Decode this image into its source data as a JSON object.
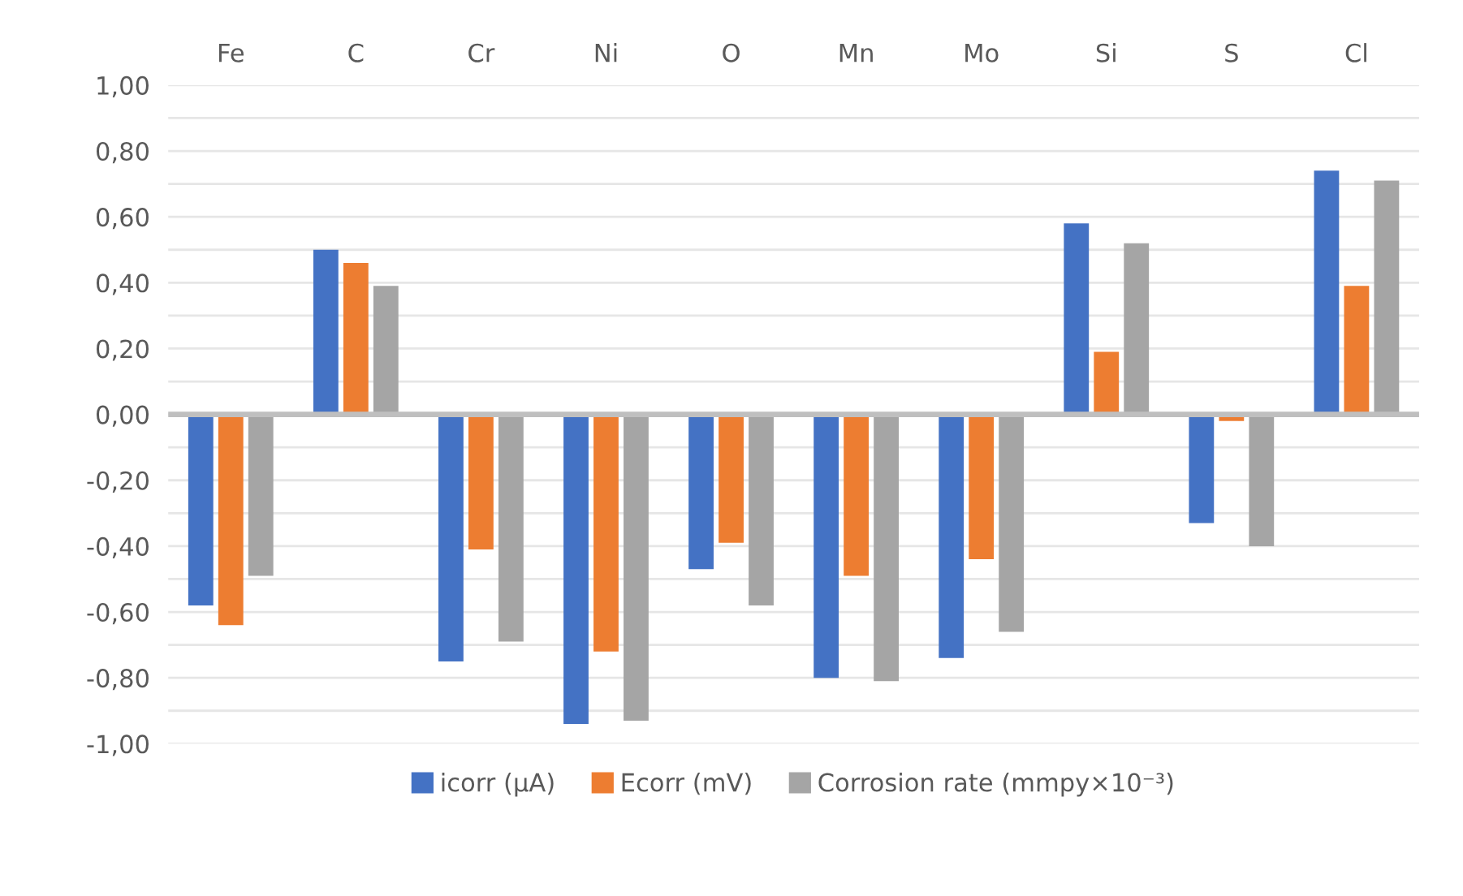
{
  "chart_data": {
    "type": "bar",
    "categories": [
      "Fe",
      "C",
      "Cr",
      "Ni",
      "O",
      "Mn",
      "Mo",
      "Si",
      "S",
      "Cl"
    ],
    "series": [
      {
        "name": "icorr (µA)",
        "color": "#4472c4",
        "values": [
          -0.58,
          0.5,
          -0.75,
          -0.94,
          -0.47,
          -0.8,
          -0.74,
          0.58,
          -0.33,
          0.74
        ]
      },
      {
        "name": "Ecorr (mV)",
        "color": "#ed7d31",
        "values": [
          -0.64,
          0.46,
          -0.41,
          -0.72,
          -0.39,
          -0.49,
          -0.44,
          0.19,
          -0.02,
          0.39
        ]
      },
      {
        "name": "Corrosion rate (mmpy×10⁻³)",
        "color": "#a5a5a5",
        "values": [
          -0.49,
          0.39,
          -0.69,
          -0.93,
          -0.58,
          -0.81,
          -0.66,
          0.52,
          -0.4,
          0.71
        ]
      }
    ],
    "ylim": [
      -1,
      1
    ],
    "yticks": [
      {
        "value": -1,
        "label": "-1,00"
      },
      {
        "value": -0.9,
        "label": null
      },
      {
        "value": -0.8,
        "label": "-0,80"
      },
      {
        "value": -0.7,
        "label": null
      },
      {
        "value": -0.6,
        "label": "-0,60"
      },
      {
        "value": -0.5,
        "label": null
      },
      {
        "value": -0.4,
        "label": "-0,40"
      },
      {
        "value": -0.3,
        "label": null
      },
      {
        "value": -0.2,
        "label": "-0,20"
      },
      {
        "value": -0.1,
        "label": null
      },
      {
        "value": 0,
        "label": "0,00"
      },
      {
        "value": 0.1,
        "label": null
      },
      {
        "value": 0.2,
        "label": "0,20"
      },
      {
        "value": 0.3,
        "label": null
      },
      {
        "value": 0.4,
        "label": "0,40"
      },
      {
        "value": 0.5,
        "label": null
      },
      {
        "value": 0.6,
        "label": "0,60"
      },
      {
        "value": 0.7,
        "label": null
      },
      {
        "value": 0.8,
        "label": "0,80"
      },
      {
        "value": 0.9,
        "label": null
      },
      {
        "value": 1,
        "label": "1,00"
      }
    ],
    "grid": "y",
    "legend": "bottom"
  }
}
